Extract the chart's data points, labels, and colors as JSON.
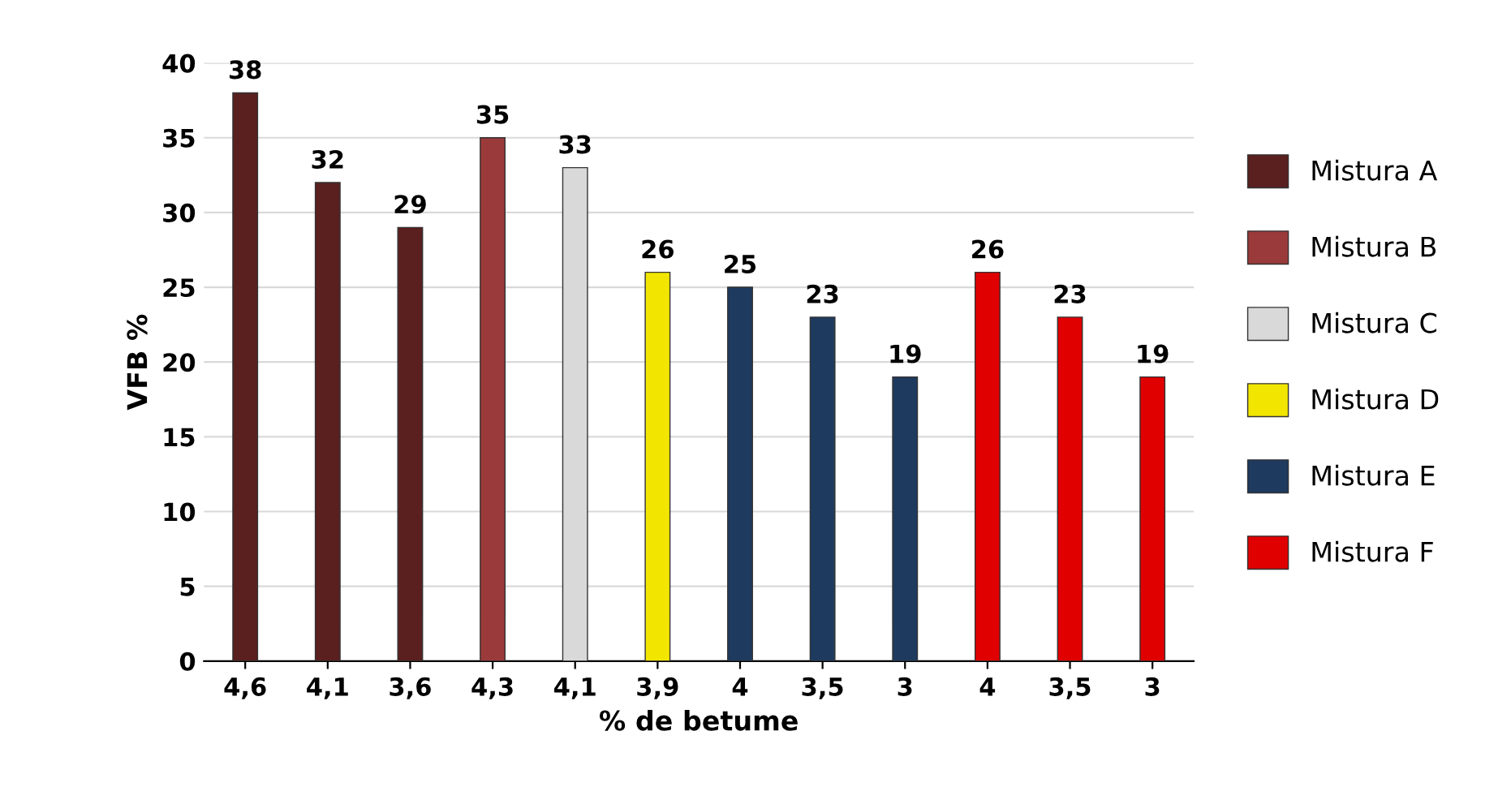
{
  "chart_data": {
    "type": "bar",
    "xlabel": "% de betume",
    "ylabel": "VFB %",
    "categories": [
      "4,6",
      "4,1",
      "3,6",
      "4,3",
      "4,1",
      "3,9",
      "4",
      "3,5",
      "3",
      "4",
      "3,5",
      "3"
    ],
    "series": [
      {
        "name": "Mistura A",
        "color": "#5a1f1f",
        "values": [
          38,
          32,
          29,
          null,
          null,
          null,
          null,
          null,
          null,
          null,
          null,
          null
        ]
      },
      {
        "name": "Mistura B",
        "color": "#9b3a3a",
        "values": [
          null,
          null,
          null,
          35,
          null,
          null,
          null,
          null,
          null,
          null,
          null,
          null
        ]
      },
      {
        "name": "Mistura C",
        "color": "#d9d9d9",
        "values": [
          null,
          null,
          null,
          null,
          33,
          null,
          null,
          null,
          null,
          null,
          null,
          null
        ]
      },
      {
        "name": "Mistura D",
        "color": "#f2e600",
        "values": [
          null,
          null,
          null,
          null,
          null,
          26,
          null,
          null,
          null,
          null,
          null,
          null
        ]
      },
      {
        "name": "Mistura E",
        "color": "#1f3a5f",
        "values": [
          null,
          null,
          null,
          null,
          null,
          null,
          25,
          23,
          19,
          null,
          null,
          null
        ]
      },
      {
        "name": "Mistura F",
        "color": "#e00000",
        "values": [
          null,
          null,
          null,
          null,
          null,
          null,
          null,
          null,
          null,
          26,
          23,
          19
        ]
      }
    ],
    "ylim": [
      0,
      40
    ],
    "yticks": [
      0,
      5,
      10,
      15,
      20,
      25,
      30,
      35,
      40
    ],
    "grid": "y",
    "legend": "right",
    "data_labels": true
  }
}
